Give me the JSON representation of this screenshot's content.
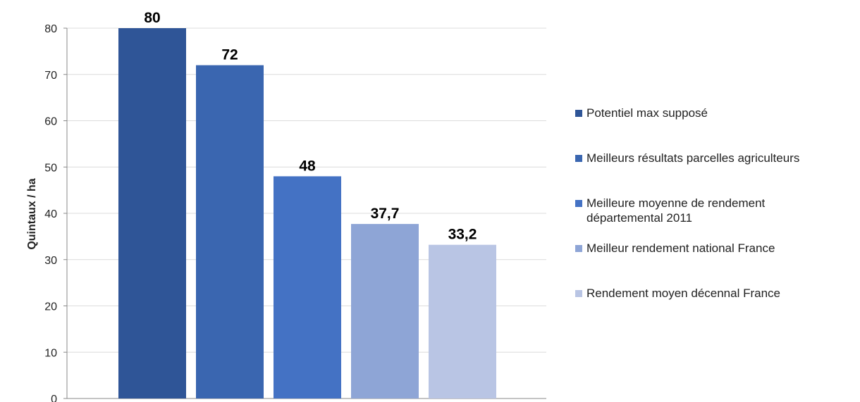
{
  "chart_data": {
    "type": "bar",
    "title": "",
    "xlabel": "",
    "ylabel": "Quintaux / ha",
    "ylim": [
      0,
      80
    ],
    "yticks": [
      0,
      10,
      20,
      30,
      40,
      50,
      60,
      70,
      80
    ],
    "grid": true,
    "legend_position": "right",
    "series": [
      {
        "name": "Potentiel max supposé",
        "value": 80,
        "label": "80",
        "color": "#2f5597"
      },
      {
        "name": "Meilleurs résultats parcelles agriculteurs",
        "value": 72,
        "label": "72",
        "color": "#3a66b0"
      },
      {
        "name": "Meilleure moyenne de rendement départemental 2011",
        "value": 48,
        "label": "48",
        "color": "#4472c4"
      },
      {
        "name": "Meilleur rendement national France",
        "value": 37.7,
        "label": "37,7",
        "color": "#8ea5d6"
      },
      {
        "name": "Rendement moyen décennal France",
        "value": 33.2,
        "label": "33,2",
        "color": "#b9c5e4"
      }
    ]
  }
}
